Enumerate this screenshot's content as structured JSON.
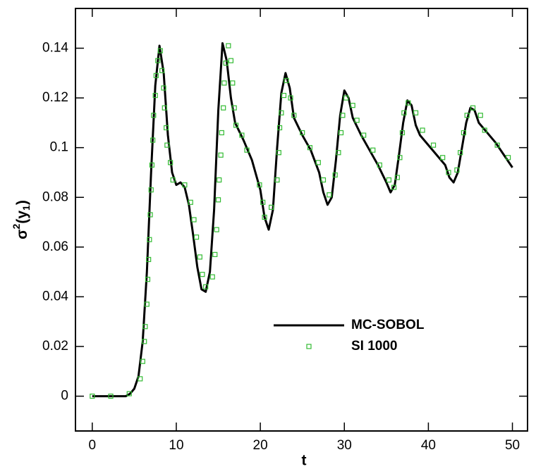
{
  "chart_data": {
    "type": "line",
    "x_label": "t",
    "y_label": {
      "symbol": "σ",
      "sup": "2",
      "open": "(y",
      "sub": "1",
      "close": ")"
    },
    "xlim": [
      -2,
      51.8
    ],
    "ylim": [
      -0.014,
      0.156
    ],
    "xticks": [
      0,
      10,
      20,
      30,
      40,
      50
    ],
    "yticks": [
      0,
      0.02,
      0.04,
      0.06,
      0.08,
      0.1,
      0.12,
      0.14
    ],
    "legend": "lower right",
    "series": [
      {
        "name": "MC-SOBOL",
        "color": "#000000",
        "type": "line",
        "x": [
          0,
          1,
          2,
          3,
          4,
          4.5,
          5,
          5.5,
          6,
          6.5,
          7,
          7.5,
          8,
          8.5,
          9,
          9.5,
          10,
          10.5,
          11,
          11.5,
          12,
          12.5,
          13,
          13.5,
          14,
          14.5,
          15,
          15.5,
          16,
          16.5,
          17,
          18,
          19,
          20,
          20.5,
          21,
          21.5,
          22,
          22.5,
          23,
          23.5,
          24,
          25,
          26,
          27,
          27.5,
          28,
          28.5,
          29,
          29.5,
          30,
          30.5,
          31,
          32,
          33,
          34,
          35,
          35.5,
          36,
          36.5,
          37,
          37.5,
          38,
          38.5,
          39,
          40,
          41,
          42,
          42.5,
          43,
          43.5,
          44,
          44.5,
          45,
          45.5,
          46,
          47,
          48,
          49,
          50
        ],
        "values": [
          0,
          0,
          0,
          0,
          0,
          0.001,
          0.003,
          0.008,
          0.022,
          0.05,
          0.09,
          0.125,
          0.141,
          0.13,
          0.105,
          0.09,
          0.085,
          0.086,
          0.084,
          0.077,
          0.065,
          0.052,
          0.043,
          0.042,
          0.05,
          0.075,
          0.115,
          0.142,
          0.135,
          0.12,
          0.11,
          0.103,
          0.095,
          0.083,
          0.072,
          0.067,
          0.075,
          0.1,
          0.122,
          0.13,
          0.124,
          0.112,
          0.105,
          0.099,
          0.09,
          0.082,
          0.077,
          0.08,
          0.095,
          0.113,
          0.123,
          0.12,
          0.112,
          0.105,
          0.099,
          0.093,
          0.086,
          0.082,
          0.085,
          0.097,
          0.11,
          0.119,
          0.117,
          0.109,
          0.105,
          0.101,
          0.097,
          0.093,
          0.088,
          0.086,
          0.09,
          0.1,
          0.11,
          0.116,
          0.115,
          0.11,
          0.106,
          0.102,
          0.097,
          0.092
        ]
      },
      {
        "name": "SI 1000",
        "color": "#33bb33",
        "type": "scatter",
        "x": [
          0,
          2.2,
          4.4,
          5.7,
          6.0,
          6.2,
          6.3,
          6.5,
          6.6,
          6.7,
          6.8,
          6.9,
          7.0,
          7.1,
          7.2,
          7.3,
          7.5,
          7.6,
          7.8,
          8.1,
          8.3,
          8.5,
          8.6,
          8.8,
          8.9,
          9.3,
          9.6,
          11.0,
          11.7,
          12.1,
          12.4,
          12.8,
          13.1,
          13.5,
          14.3,
          14.6,
          14.8,
          15.0,
          15.1,
          15.3,
          15.4,
          15.6,
          15.7,
          15.9,
          16.2,
          16.5,
          16.7,
          16.9,
          17.1,
          17.8,
          18.4,
          19.9,
          20.3,
          20.5,
          21.3,
          22.0,
          22.2,
          22.3,
          22.5,
          22.8,
          23.1,
          23.6,
          24.0,
          25.0,
          25.9,
          26.9,
          27.5,
          28.2,
          28.9,
          29.3,
          29.6,
          29.8,
          30.2,
          31.0,
          31.5,
          32.3,
          33.4,
          34.2,
          35.3,
          35.9,
          36.3,
          36.6,
          36.9,
          37.1,
          37.6,
          38.5,
          39.3,
          40.6,
          41.7,
          42.4,
          43.4,
          43.8,
          44.2,
          44.6,
          45.3,
          46.2,
          46.7,
          48.2,
          49.5
        ],
        "values": [
          0,
          0,
          0.001,
          0.007,
          0.014,
          0.022,
          0.028,
          0.037,
          0.047,
          0.055,
          0.063,
          0.073,
          0.083,
          0.093,
          0.103,
          0.113,
          0.121,
          0.129,
          0.135,
          0.139,
          0.131,
          0.124,
          0.116,
          0.108,
          0.101,
          0.094,
          0.087,
          0.085,
          0.078,
          0.071,
          0.064,
          0.056,
          0.049,
          0.044,
          0.048,
          0.057,
          0.067,
          0.079,
          0.087,
          0.097,
          0.106,
          0.116,
          0.126,
          0.134,
          0.141,
          0.135,
          0.126,
          0.116,
          0.109,
          0.105,
          0.099,
          0.085,
          0.078,
          0.072,
          0.076,
          0.087,
          0.098,
          0.108,
          0.114,
          0.121,
          0.127,
          0.12,
          0.113,
          0.106,
          0.1,
          0.094,
          0.087,
          0.081,
          0.089,
          0.098,
          0.106,
          0.113,
          0.12,
          0.117,
          0.111,
          0.105,
          0.099,
          0.093,
          0.087,
          0.084,
          0.088,
          0.096,
          0.106,
          0.114,
          0.118,
          0.114,
          0.107,
          0.101,
          0.096,
          0.09,
          0.091,
          0.098,
          0.106,
          0.113,
          0.116,
          0.113,
          0.107,
          0.101,
          0.096
        ]
      }
    ]
  }
}
